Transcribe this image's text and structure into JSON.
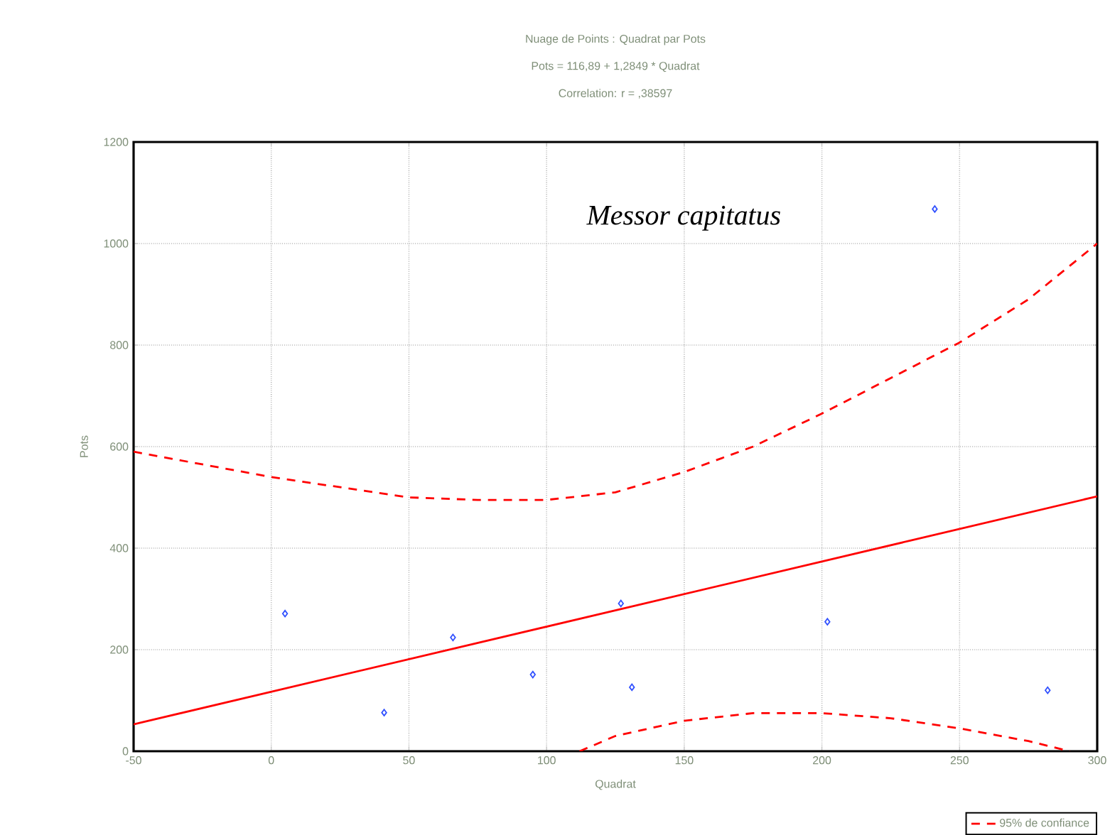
{
  "chart_data": {
    "type": "scatter",
    "title": "Nuage de Points : Quadrat  par Pots",
    "subtitle": "Pots      = 116,89 + 1,2849 * Quadrat",
    "xlabel": "Quadrat",
    "ylabel": "Pots",
    "annotations": [
      "Correlation: r = ,38597",
      "Messor capitatus"
    ],
    "xlim": [
      -50,
      300
    ],
    "ylim": [
      0,
      1200
    ],
    "xticks": [
      -50,
      0,
      50,
      100,
      150,
      200,
      250,
      300
    ],
    "yticks": [
      0,
      200,
      400,
      600,
      800,
      1000,
      1200
    ],
    "grid": true,
    "legend": "bottom right",
    "series": [
      {
        "color": "#3050ff",
        "marker": "diamond",
        "x": [
          5,
          41,
          66,
          95,
          127,
          131,
          202,
          241,
          282
        ],
        "values": [
          271,
          76,
          224,
          151,
          291,
          126,
          255,
          1068,
          120
        ]
      },
      {
        "type": "line",
        "color": "#ff0000",
        "line_style": "solid",
        "x": [
          -50,
          300
        ],
        "values": [
          53,
          502
        ]
      },
      {
        "type": "line",
        "name": "95% de confiance",
        "color": "#ff0000",
        "line_style": "dashed",
        "x": [
          -50,
          0,
          50,
          75,
          100,
          125,
          150,
          175,
          200,
          225,
          250,
          275,
          300
        ],
        "values": [
          590,
          540,
          500,
          495,
          495,
          510,
          550,
          600,
          665,
          735,
          805,
          890,
          1000
        ]
      },
      {
        "type": "line",
        "color": "#ff0000",
        "line_style": "dashed",
        "x": [
          112,
          125,
          150,
          175,
          200,
          225,
          250,
          275,
          290
        ],
        "values": [
          0,
          30,
          60,
          75,
          75,
          65,
          45,
          20,
          0
        ]
      }
    ]
  }
}
